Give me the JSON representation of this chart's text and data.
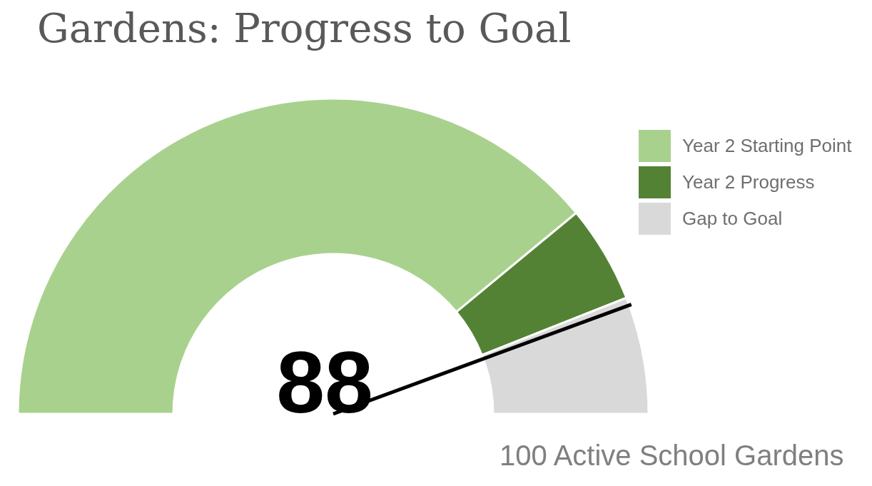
{
  "chart_data": {
    "type": "donut",
    "title": "Gardens: Progress to Goal",
    "categories": [
      "Year 2 Starting Point",
      "Year 2 Progress",
      "Gap to Goal"
    ],
    "values": [
      78,
      10,
      12
    ],
    "colors": [
      "#a9d18e",
      "#548235",
      "#d9d9d9"
    ],
    "needle": "Gap to Goal",
    "legend": "top right",
    "annotations": [
      "88",
      "100 Active School Gardens"
    ]
  }
}
